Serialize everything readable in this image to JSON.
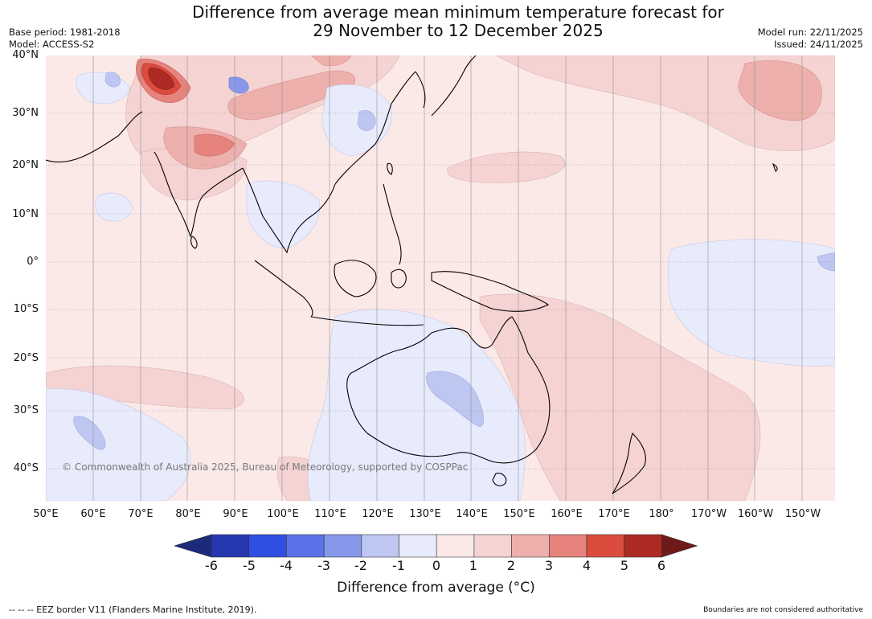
{
  "header": {
    "title_line1": "Difference from average mean minimum temperature forecast for",
    "title_line2": "29 November to 12 December 2025",
    "base_period": "Base period: 1981-2018",
    "model": "Model: ACCESS-S2",
    "model_run": "Model run: 22/11/2025",
    "issued": "Issued: 24/11/2025"
  },
  "map": {
    "copyright": "© Commonwealth of Australia 2025, Bureau of Meteorology, supported by COSPPac",
    "lat_labels": [
      "40°N",
      "30°N",
      "20°N",
      "10°N",
      "0°",
      "10°S",
      "20°S",
      "30°S",
      "40°S"
    ],
    "lon_labels": [
      "50°E",
      "60°E",
      "70°E",
      "80°E",
      "90°E",
      "100°E",
      "110°E",
      "120°E",
      "130°E",
      "140°E",
      "150°E",
      "160°E",
      "170°E",
      "180°",
      "170°W",
      "160°W",
      "150°W"
    ]
  },
  "colorbar": {
    "title": "Difference from average (°C)",
    "tick_labels": [
      "-6",
      "-5",
      "-4",
      "-3",
      "-2",
      "-1",
      "0",
      "1",
      "2",
      "3",
      "4",
      "5",
      "6"
    ],
    "colors": [
      "#1c2a7a",
      "#2638b0",
      "#2f4fe0",
      "#5b73e8",
      "#8797ea",
      "#bec6f2",
      "#e8ebfb",
      "#fbe9e8",
      "#f5d3d2",
      "#edb0ac",
      "#e5837c",
      "#db4c3f",
      "#ac2a22",
      "#6f1a18"
    ],
    "legend_color_neg_light": "#e8ebfb",
    "legend_color_pos_light": "#fbe9e8",
    "legend_color_pos_2": "#f5d3d2",
    "legend_color_pos_3": "#edb0ac",
    "legend_color_pos_4": "#e5837c",
    "legend_color_pos_5": "#db4c3f",
    "legend_color_pos_6": "#ac2a22",
    "legend_color_neg_2": "#bec6f2",
    "legend_color_neg_3": "#8797ea"
  },
  "footer": {
    "eez_note": "--  --  -- EEZ border V11 (Flanders Marine Institute, 2019).",
    "boundaries_note": "Boundaries are not considered authoritative"
  }
}
